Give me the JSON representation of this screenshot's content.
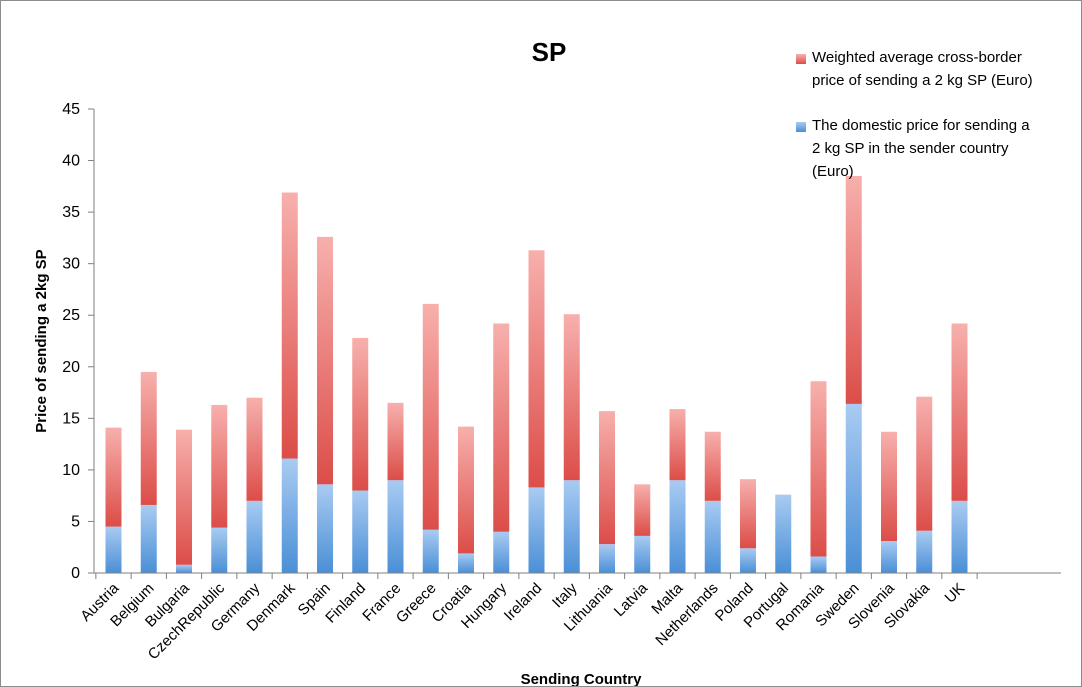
{
  "chart_data": {
    "type": "bar",
    "stacked": true,
    "title": "SP",
    "xlabel": "Sending Country",
    "ylabel": "Price of sending a 2kg SP",
    "ylim": [
      0,
      45
    ],
    "yticks": [
      0,
      5,
      10,
      15,
      20,
      25,
      30,
      35,
      40,
      45
    ],
    "grid": false,
    "legend_position": "top-right",
    "categories": [
      "Austria",
      "Belgium",
      "Bulgaria",
      "CzechRepublic",
      "Germany",
      "Denmark",
      "Spain",
      "Finland",
      "France",
      "Greece",
      "Croatia",
      "Hungary",
      "Ireland",
      "Italy",
      "Lithuania",
      "Latvia",
      "Malta",
      "Netherlands",
      "Poland",
      "Portugal",
      "Romania",
      "Sweden",
      "Slovenia",
      "Slovakia",
      "UK"
    ],
    "series": [
      {
        "name": "The domestic price for sending a 2 kg SP in the sender country (Euro)",
        "color": "#5b9bd5",
        "values": [
          4.5,
          6.6,
          0.8,
          4.4,
          7.0,
          11.1,
          8.6,
          8.0,
          9.0,
          4.2,
          1.9,
          4.0,
          8.3,
          9.0,
          2.8,
          3.6,
          9.0,
          7.0,
          2.4,
          7.6,
          1.6,
          16.4,
          3.1,
          4.1,
          7.0
        ]
      },
      {
        "name": "Weighted average cross-border price of sending a 2 kg SP (Euro)",
        "color": "#e05a55",
        "values": [
          9.6,
          12.9,
          13.1,
          11.9,
          10.0,
          25.8,
          24.0,
          14.8,
          7.5,
          21.9,
          12.3,
          20.2,
          23.0,
          16.1,
          12.9,
          5.0,
          6.9,
          6.7,
          6.7,
          0.0,
          17.0,
          22.1,
          10.6,
          13.0,
          17.2
        ]
      }
    ]
  }
}
